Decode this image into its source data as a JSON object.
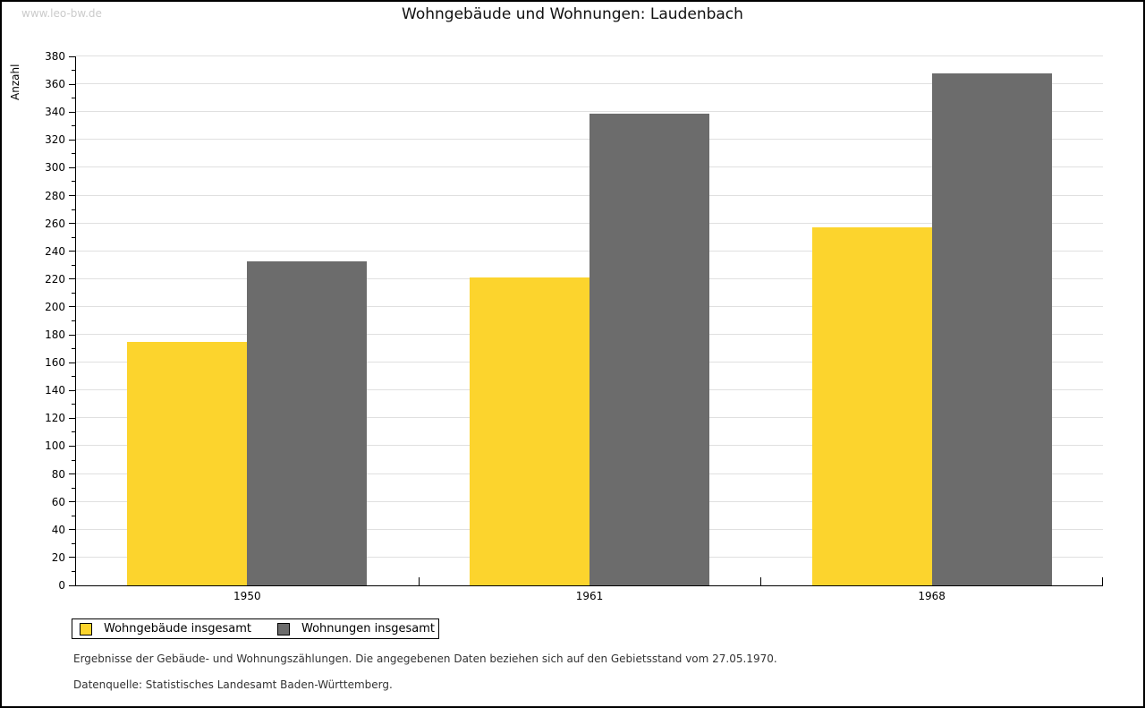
{
  "watermark": "www.leo-bw.de",
  "chart_data": {
    "type": "bar",
    "title": "Wohngebäude und Wohnungen: Laudenbach",
    "xlabel": "",
    "ylabel": "Anzahl",
    "categories": [
      "1950",
      "1961",
      "1968"
    ],
    "series": [
      {
        "name": "Wohngebäude insgesamt",
        "color": "#fcd42d",
        "values": [
          175,
          221,
          257
        ]
      },
      {
        "name": "Wohnungen insgesamt",
        "color": "#6c6c6c",
        "values": [
          233,
          339,
          368
        ]
      }
    ],
    "ylim": [
      0,
      380
    ],
    "ytick_major_step": 20,
    "ytick_minor_step": 10,
    "grid": true,
    "legend_position": "bottom-left"
  },
  "colors": {
    "grid": "#e0e0e0",
    "axis": "#000000",
    "watermark": "#cbcbcb",
    "background": "#ffffff"
  },
  "footnotes": [
    "Ergebnisse der Gebäude- und Wohnungszählungen. Die angegebenen Daten beziehen sich auf den Gebietsstand vom 27.05.1970.",
    "Datenquelle: Statistisches Landesamt Baden-Württemberg."
  ]
}
